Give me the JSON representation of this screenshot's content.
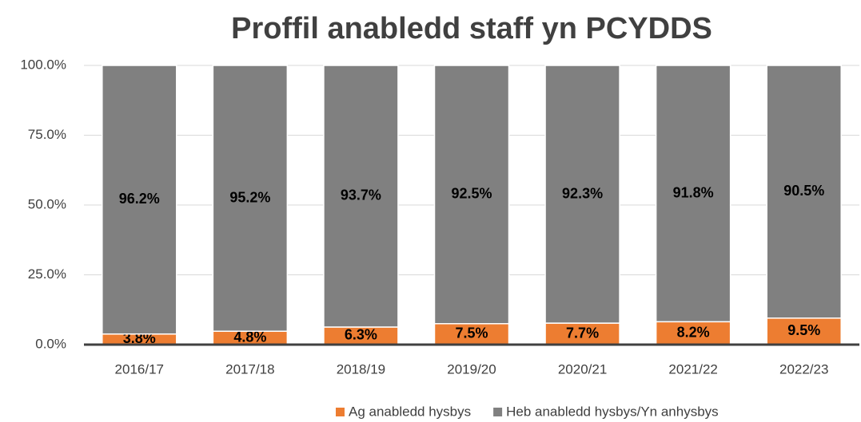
{
  "chart_data": {
    "type": "stacked_bar",
    "title": "Proffil anabledd staff yn PCYDDS",
    "categories": [
      "2016/17",
      "2017/18",
      "2018/19",
      "2019/20",
      "2020/21",
      "2021/22",
      "2022/23"
    ],
    "series": [
      {
        "name": "Ag anabledd hysbys",
        "color": "#ed7d31",
        "values": [
          3.8,
          4.8,
          6.3,
          7.5,
          7.7,
          8.2,
          9.5
        ],
        "value_labels": [
          "3.8%",
          "4.8%",
          "6.3%",
          "7.5%",
          "7.7%",
          "8.2%",
          "9.5%"
        ]
      },
      {
        "name": "Heb anabledd hysbys/Yn anhysbys",
        "color": "#808080",
        "values": [
          96.2,
          95.2,
          93.7,
          92.5,
          92.3,
          91.8,
          90.5
        ],
        "value_labels": [
          "96.2%",
          "95.2%",
          "93.7%",
          "92.5%",
          "92.3%",
          "91.8%",
          "90.5%"
        ]
      }
    ],
    "ylim": [
      0,
      100
    ],
    "yticks": [
      {
        "value": 0,
        "label": "0.0%"
      },
      {
        "value": 25,
        "label": "25.0%"
      },
      {
        "value": 50,
        "label": "50.0%"
      },
      {
        "value": 75,
        "label": "75.0%"
      },
      {
        "value": 100,
        "label": "100.0%"
      }
    ],
    "grid": true,
    "legend": "bottom"
  }
}
